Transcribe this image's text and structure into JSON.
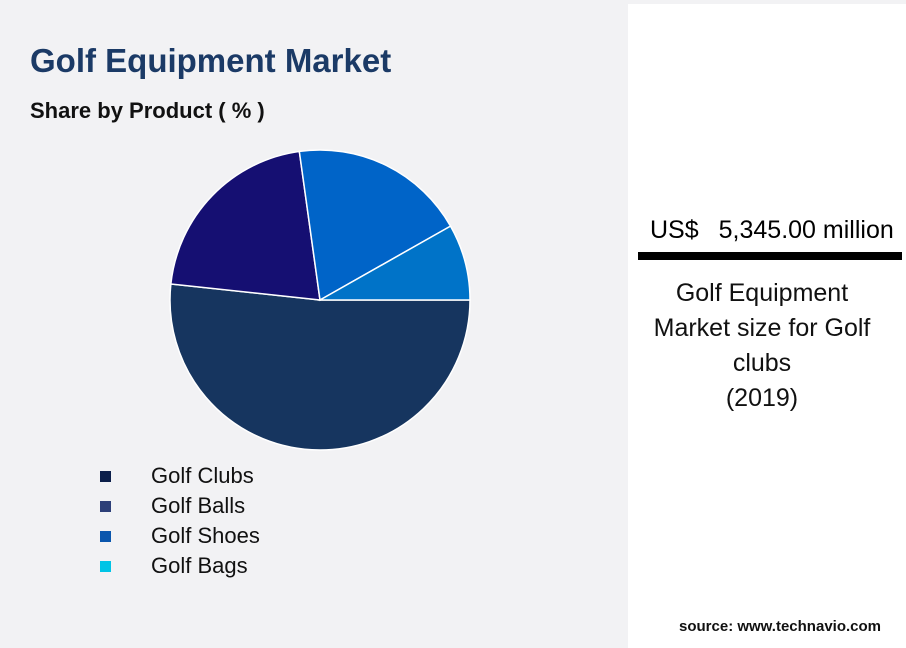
{
  "header": {
    "title": "Golf Equipment Market",
    "subtitle": "Share by Product ( % )"
  },
  "chart_data": {
    "type": "pie",
    "title": "Golf Equipment Market",
    "subtitle": "Share by Product ( % )",
    "categories": [
      "Golf Clubs",
      "Golf Balls",
      "Golf Shoes",
      "Golf Bags"
    ],
    "values": [
      51.7,
      21.1,
      19.0,
      8.2
    ],
    "slice_colors": [
      "#16355f",
      "#150f72",
      "#0064c8",
      "#0073c8"
    ],
    "legend_colors": [
      "#0c1f4a",
      "#2d3f78",
      "#0a56ad",
      "#00c4e6"
    ],
    "legend_position": "bottom-left"
  },
  "panel": {
    "currency": "US$",
    "value": "5,345.00 million",
    "description_lines": [
      "Golf Equipment",
      "Market size for Golf",
      "clubs",
      "(2019)"
    ]
  },
  "source": "source: www.technavio.com"
}
